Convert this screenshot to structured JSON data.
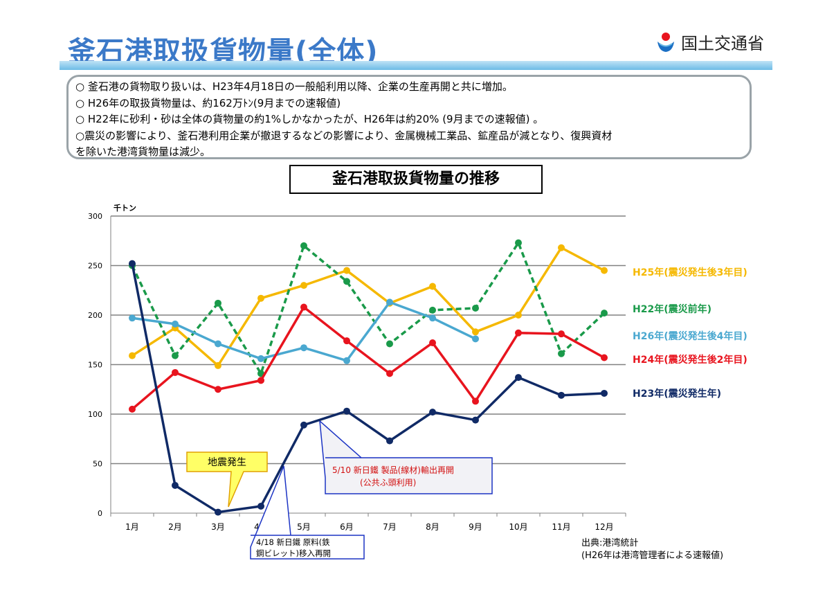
{
  "page": {
    "title": "釜石港取扱貨物量(全体)",
    "ministry": "国土交通省",
    "bullets": [
      "○ 釜石港の貨物取り扱いは、H23年4月18日の一般船利用以降、企業の生産再開と共に増加。",
      "○ H26年の取扱貨物量は、約162万ﾄﾝ(9月までの速報値)",
      "○ H22年に砂利・砂は全体の貨物量の約1%しかなかったが、H26年は約20% (9月までの速報値) 。",
      "○震災の影響により、釜石港利用企業が撤退するなどの影響により、金属機械工業品、鉱産品が減となり、復興資材",
      "を除いた港湾貨物量は減少。"
    ],
    "source_lines": [
      "出典:港湾統計",
      "(H26年は港湾管理者による速報値)"
    ]
  },
  "chart_data": {
    "type": "line",
    "title": "釜石港取扱貨物量の推移",
    "ylabel": "千トン",
    "ylim": [
      0,
      300
    ],
    "yticks": [
      0,
      50,
      100,
      150,
      200,
      250,
      300
    ],
    "categories": [
      "1月",
      "2月",
      "3月",
      "4月",
      "5月",
      "6月",
      "7月",
      "8月",
      "9月",
      "10月",
      "11月",
      "12月"
    ],
    "grid": true,
    "series": [
      {
        "name": "H25年(震災発生後3年目)",
        "color": "#f5b800",
        "style": "solid",
        "values": [
          159,
          187,
          149,
          217,
          230,
          245,
          212,
          229,
          183,
          200,
          268,
          245
        ]
      },
      {
        "name": "H22年(震災前年)",
        "color": "#1a9a4a",
        "style": "dashed",
        "values": [
          250,
          159,
          212,
          141,
          270,
          234,
          171,
          205,
          207,
          273,
          161,
          202
        ]
      },
      {
        "name": "H26年(震災発生後4年目)",
        "color": "#4aa8d0",
        "style": "solid",
        "values": [
          197,
          191,
          171,
          156,
          167,
          154,
          213,
          197,
          176,
          null,
          null,
          null
        ]
      },
      {
        "name": "H24年(震災発生後2年目)",
        "color": "#e8141e",
        "style": "solid",
        "values": [
          105,
          142,
          125,
          134,
          208,
          174,
          141,
          172,
          113,
          182,
          181,
          157
        ]
      },
      {
        "name": "H23年(震災発生年)",
        "color": "#102a66",
        "style": "solid",
        "values": [
          252,
          28,
          1,
          7,
          89,
          103,
          73,
          102,
          94,
          137,
          119,
          121
        ]
      }
    ],
    "annotations": [
      {
        "text": "地震発生",
        "month": "3月"
      },
      {
        "text_lines": [
          "5/10 新日鐵 製品(線材)輸出再開",
          "(公共ふ頭利用)"
        ],
        "month": "5月"
      },
      {
        "text_lines": [
          "4/18 新日鐵 原料(鉄",
          "鋼ビレット)移入再開"
        ],
        "month": "4月"
      }
    ]
  }
}
